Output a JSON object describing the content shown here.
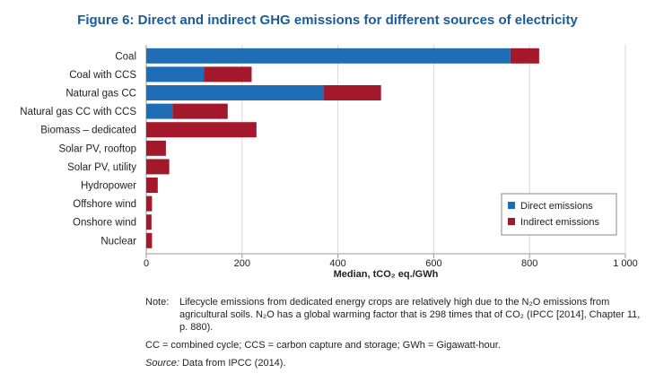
{
  "figure_title": "Figure 6: Direct and indirect GHG emissions for different sources of electricity",
  "chart_data": {
    "type": "bar",
    "orientation": "horizontal",
    "stacked": true,
    "categories": [
      "Coal",
      "Coal with CCS",
      "Natural gas CC",
      "Natural gas CC with CCS",
      "Biomass – dedicated",
      "Solar PV, rooftop",
      "Solar PV, utility",
      "Hydropower",
      "Offshore wind",
      "Onshore wind",
      "Nuclear"
    ],
    "series": [
      {
        "name": "Direct emissions",
        "color": "#1f6db5",
        "values": [
          760,
          120,
          370,
          55,
          0,
          0,
          0,
          0,
          0,
          0,
          0
        ]
      },
      {
        "name": "Indirect emissions",
        "color": "#a3192b",
        "values": [
          60,
          100,
          120,
          115,
          230,
          41,
          48,
          24,
          12,
          11,
          12
        ]
      }
    ],
    "xlabel": "Median, tCO₂ eq./GWh",
    "xlim": [
      0,
      1000
    ],
    "xticks": [
      0,
      200,
      400,
      600,
      800,
      1000
    ],
    "xtick_labels": [
      "0",
      "200",
      "400",
      "600",
      "800",
      "1 000"
    ],
    "legend_position": "bottom-right"
  },
  "notes": {
    "note_label": "Note:",
    "note_text": "Lifecycle emissions from dedicated energy crops are relatively high due to the N₂O emissions from agricultural soils. N₂O has a global warming factor that is 298 times that of CO₂ (IPCC [2014], Chapter 11, p. 880).",
    "abbreviations": "CC = combined cycle; CCS = carbon capture and storage; GWh = Gigawatt-hour.",
    "source_label": "Source:",
    "source_text": "Data from IPCC (2014)."
  }
}
